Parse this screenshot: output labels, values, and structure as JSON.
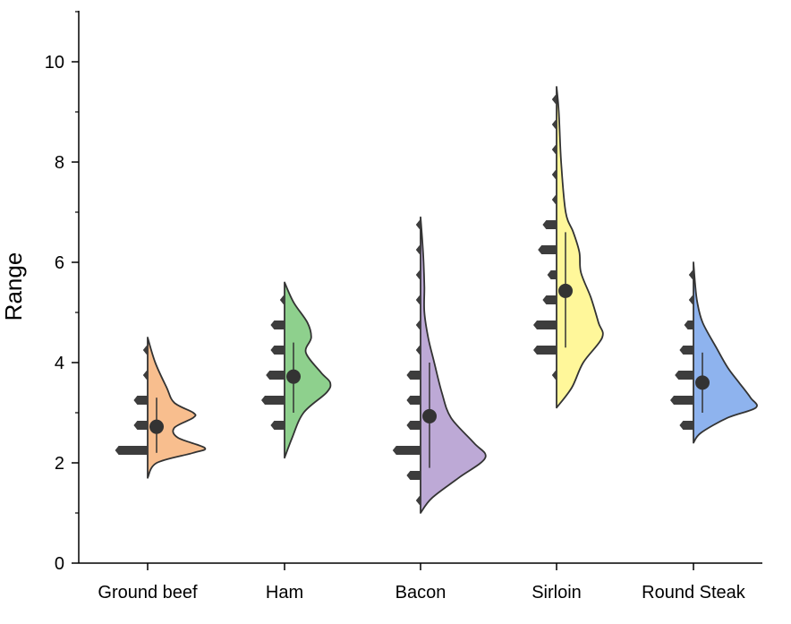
{
  "chart_data": {
    "type": "violin",
    "title": "",
    "xlabel": "",
    "ylabel": "Range",
    "ylim": [
      0,
      11
    ],
    "yticks": [
      0,
      2,
      4,
      6,
      8,
      10
    ],
    "ytick_labels": [
      "0",
      "2",
      "4",
      "6",
      "8",
      "10"
    ],
    "categories": [
      "Ground beef",
      "Ham",
      "Bacon",
      "Sirloin",
      "Round Steak"
    ],
    "series": [
      {
        "name": "Ground beef",
        "color": "#F8BE8E",
        "range": [
          1.7,
          4.5
        ],
        "mean": 2.72,
        "whisker": [
          2.2,
          3.3
        ],
        "density": [
          [
            1.7,
            0.0
          ],
          [
            2.0,
            0.12
          ],
          [
            2.2,
            0.6
          ],
          [
            2.3,
            0.75
          ],
          [
            2.5,
            0.4
          ],
          [
            2.7,
            0.35
          ],
          [
            2.9,
            0.6
          ],
          [
            3.0,
            0.6
          ],
          [
            3.2,
            0.35
          ],
          [
            3.5,
            0.25
          ],
          [
            4.0,
            0.1
          ],
          [
            4.5,
            0.0
          ]
        ],
        "histogram": [
          {
            "y": 2.25,
            "n": 7
          },
          {
            "y": 2.75,
            "n": 3
          },
          {
            "y": 3.25,
            "n": 3
          },
          {
            "y": 3.75,
            "n": 1
          },
          {
            "y": 4.25,
            "n": 1
          }
        ]
      },
      {
        "name": "Ham",
        "color": "#8ED08D",
        "range": [
          2.1,
          5.6
        ],
        "mean": 3.72,
        "whisker": [
          3.0,
          4.4
        ],
        "density": [
          [
            2.1,
            0.0
          ],
          [
            2.5,
            0.1
          ],
          [
            3.0,
            0.25
          ],
          [
            3.4,
            0.55
          ],
          [
            3.6,
            0.6
          ],
          [
            3.8,
            0.48
          ],
          [
            4.2,
            0.28
          ],
          [
            4.5,
            0.35
          ],
          [
            4.8,
            0.3
          ],
          [
            5.2,
            0.12
          ],
          [
            5.6,
            0.0
          ]
        ],
        "histogram": [
          {
            "y": 2.75,
            "n": 3
          },
          {
            "y": 3.25,
            "n": 5
          },
          {
            "y": 3.75,
            "n": 4
          },
          {
            "y": 4.25,
            "n": 3
          },
          {
            "y": 4.75,
            "n": 3
          },
          {
            "y": 5.25,
            "n": 1
          }
        ]
      },
      {
        "name": "Bacon",
        "color": "#BDA9D6",
        "range": [
          1.0,
          6.9
        ],
        "mean": 2.93,
        "whisker": [
          1.9,
          4.0
        ],
        "density": [
          [
            1.0,
            0.0
          ],
          [
            1.3,
            0.15
          ],
          [
            1.7,
            0.5
          ],
          [
            2.1,
            0.85
          ],
          [
            2.4,
            0.7
          ],
          [
            2.9,
            0.4
          ],
          [
            3.4,
            0.28
          ],
          [
            4.0,
            0.18
          ],
          [
            4.5,
            0.1
          ],
          [
            5.0,
            0.05
          ],
          [
            5.5,
            0.05
          ],
          [
            6.0,
            0.04
          ],
          [
            6.5,
            0.02
          ],
          [
            6.9,
            0.0
          ]
        ],
        "histogram": [
          {
            "y": 1.25,
            "n": 1
          },
          {
            "y": 1.75,
            "n": 3
          },
          {
            "y": 2.25,
            "n": 6
          },
          {
            "y": 2.75,
            "n": 3
          },
          {
            "y": 3.25,
            "n": 3
          },
          {
            "y": 3.75,
            "n": 3
          },
          {
            "y": 4.25,
            "n": 1
          },
          {
            "y": 4.75,
            "n": 1
          },
          {
            "y": 5.25,
            "n": 1
          },
          {
            "y": 5.75,
            "n": 1
          },
          {
            "y": 6.25,
            "n": 1
          },
          {
            "y": 6.75,
            "n": 1
          }
        ]
      },
      {
        "name": "Sirloin",
        "color": "#FFF79A",
        "range": [
          3.1,
          9.5
        ],
        "mean": 5.43,
        "whisker": [
          4.3,
          6.6
        ],
        "density": [
          [
            3.1,
            0.0
          ],
          [
            3.5,
            0.2
          ],
          [
            4.0,
            0.35
          ],
          [
            4.5,
            0.6
          ],
          [
            4.8,
            0.55
          ],
          [
            5.3,
            0.45
          ],
          [
            5.8,
            0.32
          ],
          [
            6.2,
            0.3
          ],
          [
            6.6,
            0.22
          ],
          [
            7.0,
            0.12
          ],
          [
            8.0,
            0.06
          ],
          [
            9.0,
            0.03
          ],
          [
            9.5,
            0.0
          ]
        ],
        "histogram": [
          {
            "y": 3.75,
            "n": 1
          },
          {
            "y": 4.25,
            "n": 5
          },
          {
            "y": 4.75,
            "n": 5
          },
          {
            "y": 5.25,
            "n": 3
          },
          {
            "y": 5.75,
            "n": 2
          },
          {
            "y": 6.25,
            "n": 4
          },
          {
            "y": 6.75,
            "n": 3
          },
          {
            "y": 7.25,
            "n": 1
          },
          {
            "y": 7.75,
            "n": 1
          },
          {
            "y": 8.25,
            "n": 1
          },
          {
            "y": 8.75,
            "n": 1
          },
          {
            "y": 9.25,
            "n": 1
          }
        ]
      },
      {
        "name": "Round Steak",
        "color": "#8EB3EE",
        "range": [
          2.4,
          6.0
        ],
        "mean": 3.6,
        "whisker": [
          3.0,
          4.2
        ],
        "density": [
          [
            2.4,
            0.0
          ],
          [
            2.6,
            0.1
          ],
          [
            2.9,
            0.45
          ],
          [
            3.1,
            0.82
          ],
          [
            3.3,
            0.75
          ],
          [
            3.6,
            0.6
          ],
          [
            3.9,
            0.45
          ],
          [
            4.3,
            0.3
          ],
          [
            4.8,
            0.12
          ],
          [
            5.2,
            0.05
          ],
          [
            5.6,
            0.02
          ],
          [
            6.0,
            0.0
          ]
        ],
        "histogram": [
          {
            "y": 2.75,
            "n": 3
          },
          {
            "y": 3.25,
            "n": 5
          },
          {
            "y": 3.75,
            "n": 4
          },
          {
            "y": 4.25,
            "n": 3
          },
          {
            "y": 4.75,
            "n": 2
          },
          {
            "y": 5.25,
            "n": 1
          },
          {
            "y": 5.75,
            "n": 1
          }
        ]
      }
    ]
  }
}
